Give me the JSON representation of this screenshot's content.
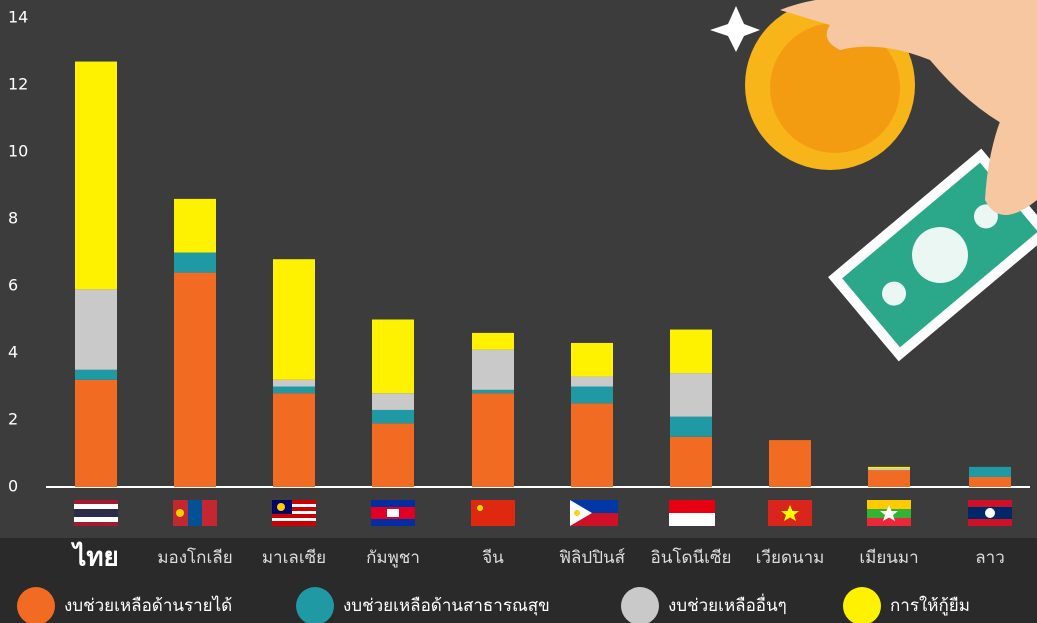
{
  "chart_data": {
    "type": "stacked_bar",
    "categories": [
      "ไทย",
      "มองโกเลีย",
      "มาเลเซีย",
      "กัมพูชา",
      "จีน",
      "ฟิลิปปินส์",
      "อินโดนีเซีย",
      "เวียดนาม",
      "เมียนมา",
      "ลาว"
    ],
    "series": [
      {
        "name": "งบช่วยเหลือด้านรายได้",
        "color": "#f26b22",
        "values": [
          3.2,
          6.4,
          2.8,
          1.9,
          2.8,
          2.5,
          1.5,
          1.4,
          0.5,
          0.3
        ]
      },
      {
        "name": "งบช่วยเหลือด้านสาธารณสุข",
        "color": "#1f9aa5",
        "values": [
          0.3,
          0.6,
          0.2,
          0.4,
          0.1,
          0.5,
          0.6,
          0,
          0,
          0.3
        ]
      },
      {
        "name": "งบช่วยเหลืออื่นๆ",
        "color": "#c9c9c9",
        "values": [
          2.4,
          0,
          0.2,
          0.5,
          1.2,
          0.3,
          1.3,
          0,
          0.05,
          0
        ]
      },
      {
        "name": "การให้กู้ยืม",
        "color": "#fff200",
        "values": [
          6.8,
          1.6,
          3.6,
          2.2,
          0.5,
          1.0,
          1.3,
          0,
          0.05,
          0
        ]
      }
    ],
    "ylim": [
      0,
      14
    ],
    "yticks": [
      0,
      2,
      4,
      6,
      8,
      10,
      12,
      14
    ]
  }
}
